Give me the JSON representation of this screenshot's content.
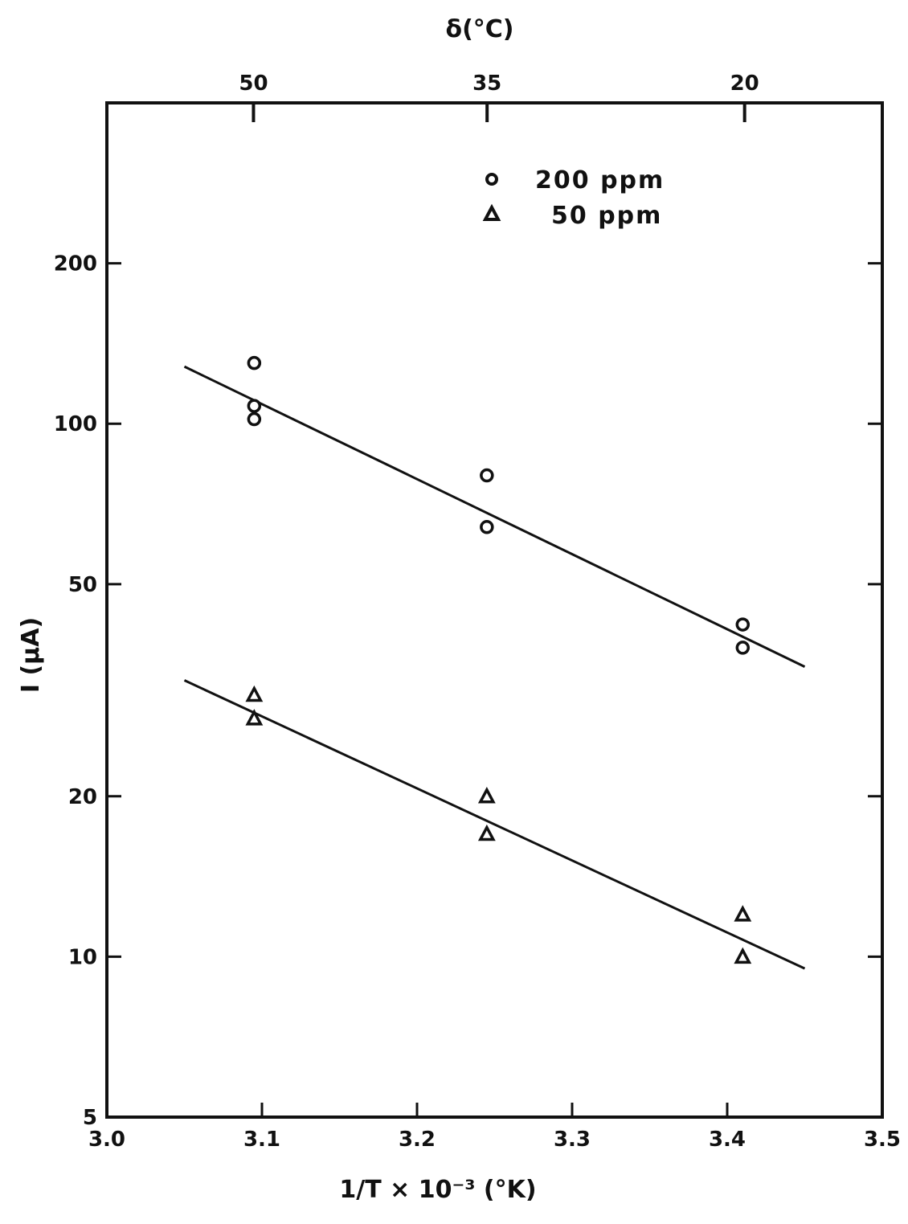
{
  "chart_data": {
    "type": "scatter",
    "title": "",
    "xlabel": "1/T × 10⁻³ (°K)",
    "ylabel": "I (µA)",
    "top_xlabel": "δ(°C)",
    "x_scale": "linear",
    "y_scale": "log",
    "xlim": [
      3.0,
      3.5
    ],
    "ylim": [
      5,
      400
    ],
    "x_ticks": [
      "3.0",
      "3.1",
      "3.2",
      "3.3",
      "3.4",
      "3.5"
    ],
    "y_ticks": [
      "5",
      "10",
      "20",
      "50",
      "100",
      "200"
    ],
    "top_ticks": [
      "50",
      "35",
      "20"
    ],
    "grid": false,
    "legend_position": "top-right",
    "series": [
      {
        "name": "200 ppm",
        "marker": "circle",
        "points": [
          [
            3.095,
            130
          ],
          [
            3.095,
            108
          ],
          [
            3.095,
            102
          ],
          [
            3.245,
            80
          ],
          [
            3.245,
            64
          ],
          [
            3.41,
            42
          ],
          [
            3.41,
            38
          ]
        ],
        "fit_line": [
          [
            3.05,
            128
          ],
          [
            3.45,
            35
          ]
        ]
      },
      {
        "name": "50 ppm",
        "marker": "triangle",
        "points": [
          [
            3.095,
            31
          ],
          [
            3.095,
            28
          ],
          [
            3.245,
            20
          ],
          [
            3.245,
            17
          ],
          [
            3.41,
            12
          ],
          [
            3.41,
            10
          ]
        ],
        "fit_line": [
          [
            3.05,
            33
          ],
          [
            3.45,
            9.5
          ]
        ]
      }
    ]
  }
}
